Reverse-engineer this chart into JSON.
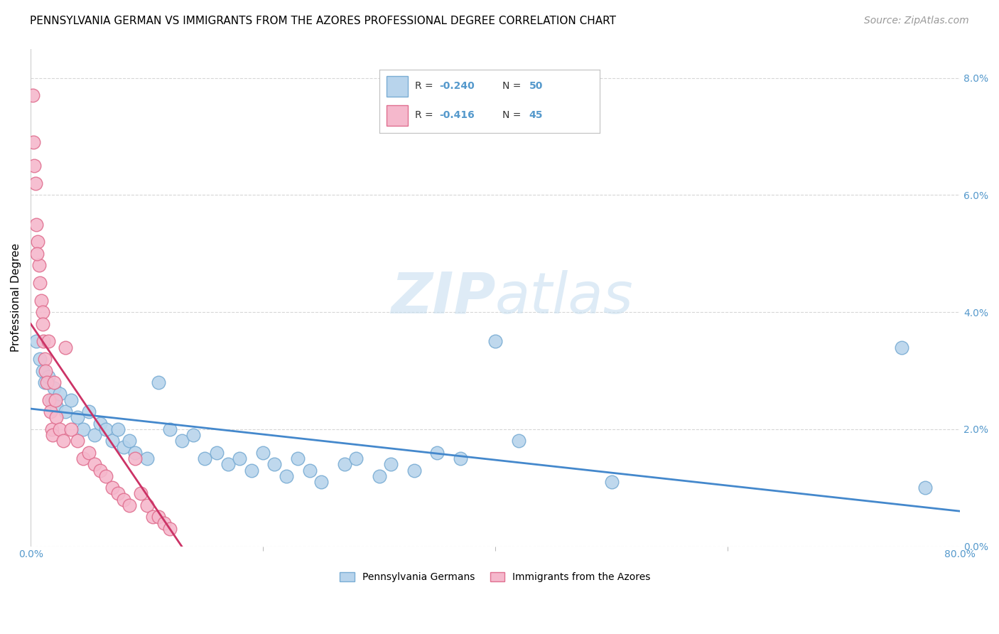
{
  "title": "PENNSYLVANIA GERMAN VS IMMIGRANTS FROM THE AZORES PROFESSIONAL DEGREE CORRELATION CHART",
  "source": "Source: ZipAtlas.com",
  "ylabel": "Professional Degree",
  "right_ytick_labels": [
    "0.0%",
    "2.0%",
    "4.0%",
    "6.0%",
    "8.0%"
  ],
  "right_ytick_values": [
    0.0,
    2.0,
    4.0,
    6.0,
    8.0
  ],
  "xlim": [
    0.0,
    80.0
  ],
  "ylim": [
    0.0,
    8.5
  ],
  "xtick_values": [
    0.0,
    80.0
  ],
  "xtick_labels": [
    "0.0%",
    "80.0%"
  ],
  "blue_dot_color": "#b8d4ec",
  "blue_dot_edge_color": "#7aadd4",
  "pink_dot_color": "#f5b8cc",
  "pink_dot_edge_color": "#e07090",
  "blue_line_color": "#4488cc",
  "pink_line_color": "#cc3366",
  "grid_color": "#cccccc",
  "axis_color": "#5599cc",
  "background_color": "#ffffff",
  "title_fontsize": 11,
  "source_fontsize": 10,
  "blue_line_x0": 0.0,
  "blue_line_y0": 2.35,
  "blue_line_x1": 80.0,
  "blue_line_y1": 0.6,
  "pink_line_x0": 0.0,
  "pink_line_y0": 3.8,
  "pink_line_x1": 13.0,
  "pink_line_y1": 0.0
}
